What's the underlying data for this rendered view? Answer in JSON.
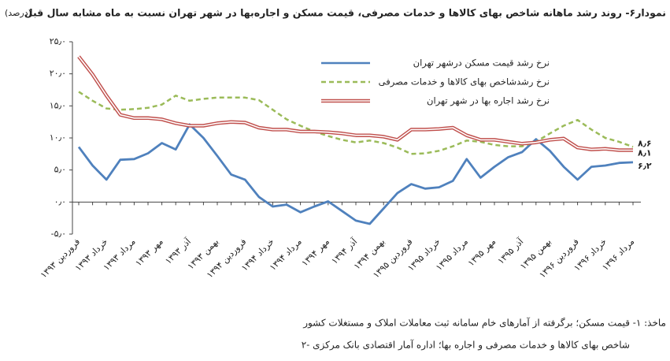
{
  "chart_data": {
    "type": "line",
    "title": "نمودار۶- روند رشد ماهانه شاخص بهای کالاها و خدمات مصرفی، قیمت مسکن و اجاره‌بها در شهر تهران نسبت به ماه مشابه سال قبل",
    "unit": "(درصد)",
    "categories": [
      "فروردین ۱۳۹۳",
      null,
      "خرداد ۱۳۹۳",
      null,
      "مرداد ۱۳۹۳",
      null,
      "مهر ۱۳۹۳",
      null,
      "آذر ۱۳۹۳",
      null,
      "بهمن ۱۳۹۳",
      null,
      "فروردین ۱۳۹۴",
      null,
      "خرداد ۱۳۹۴",
      null,
      "مرداد ۱۳۹۴",
      null,
      "مهر ۱۳۹۴",
      null,
      "آذر ۱۳۹۴",
      null,
      "بهمن ۱۳۹۴",
      null,
      "فروردین ۱۳۹۵",
      null,
      "خرداد ۱۳۹۵",
      null,
      "مرداد ۱۳۹۵",
      null,
      "مهر ۱۳۹۵",
      null,
      "آذر ۱۳۹۵",
      null,
      "بهمن ۱۳۹۵",
      null,
      "فروردین ۱۳۹۶",
      null,
      "خرداد ۱۳۹۶",
      null,
      "مرداد ۱۳۹۶"
    ],
    "series": [
      {
        "name": "نرخ رشد قیمت مسکن درشهر تهران",
        "color": "#4f81bd",
        "style": "solid",
        "values": [
          8.6,
          5.7,
          3.5,
          6.6,
          6.7,
          7.6,
          9.2,
          8.2,
          12.1,
          10.0,
          7.2,
          4.3,
          3.5,
          0.8,
          -0.7,
          -0.4,
          -1.6,
          -0.7,
          0.1,
          -1.4,
          -2.9,
          -3.4,
          -1.0,
          1.4,
          2.8,
          2.1,
          2.3,
          3.3,
          6.7,
          3.8,
          5.5,
          7.0,
          7.8,
          9.8,
          8.0,
          5.5,
          3.5,
          5.5,
          5.7,
          6.1,
          6.2
        ],
        "value_labels": [
          null,
          null,
          null,
          null,
          null,
          null,
          null,
          null,
          null,
          null,
          null,
          null,
          null,
          null,
          null,
          null,
          null,
          null,
          null,
          null,
          null,
          null,
          null,
          null,
          null,
          null,
          null,
          null,
          null,
          null,
          null,
          null,
          null,
          null,
          null,
          null,
          null,
          null,
          null,
          null,
          "۶٫۲"
        ]
      },
      {
        "name": "نرخ رشدشاخص بهای کالاها و خدمات مصرفی",
        "color": "#9bbb59",
        "style": "dashed",
        "values": [
          17.2,
          15.8,
          14.6,
          14.4,
          14.5,
          14.7,
          15.2,
          16.6,
          15.8,
          16.1,
          16.3,
          16.3,
          16.3,
          15.9,
          14.4,
          12.9,
          11.9,
          11.0,
          10.3,
          9.7,
          9.3,
          9.6,
          9.2,
          8.5,
          7.5,
          7.6,
          8.0,
          8.7,
          9.6,
          9.4,
          8.9,
          8.7,
          8.7,
          9.4,
          10.7,
          11.9,
          12.8,
          11.3,
          10.0,
          9.4,
          8.6
        ],
        "value_labels": [
          null,
          null,
          null,
          null,
          null,
          null,
          null,
          null,
          null,
          null,
          null,
          null,
          null,
          null,
          null,
          null,
          null,
          null,
          null,
          null,
          null,
          null,
          null,
          null,
          null,
          null,
          null,
          null,
          null,
          null,
          null,
          null,
          null,
          null,
          null,
          null,
          null,
          null,
          null,
          null,
          "۸٫۶"
        ]
      },
      {
        "name": "نرخ رشد اجاره بها در شهر تهران",
        "color": "#c0504d",
        "style": "double",
        "values": [
          22.7,
          19.9,
          16.6,
          13.6,
          13.1,
          13.1,
          12.9,
          12.3,
          11.9,
          11.9,
          12.3,
          12.5,
          12.4,
          11.6,
          11.3,
          11.3,
          11.0,
          11.0,
          10.9,
          10.7,
          10.4,
          10.4,
          10.2,
          9.7,
          11.3,
          11.3,
          11.4,
          11.6,
          10.4,
          9.7,
          9.7,
          9.4,
          9.1,
          9.3,
          9.7,
          9.9,
          8.5,
          8.2,
          8.3,
          8.1,
          8.1
        ],
        "value_labels": [
          null,
          null,
          null,
          null,
          null,
          null,
          null,
          null,
          null,
          null,
          null,
          null,
          null,
          null,
          null,
          null,
          null,
          null,
          null,
          null,
          null,
          null,
          null,
          null,
          null,
          null,
          null,
          null,
          null,
          null,
          null,
          null,
          null,
          null,
          null,
          null,
          null,
          null,
          null,
          null,
          "۸٫۱"
        ]
      }
    ],
    "ylim": [
      -5,
      25
    ],
    "yticks": [
      {
        "value": -5,
        "label": "-۵٫۰"
      },
      {
        "value": 0,
        "label": "۰٫۰"
      },
      {
        "value": 5,
        "label": "۵٫۰"
      },
      {
        "value": 10,
        "label": "۱۰٫۰"
      },
      {
        "value": 15,
        "label": "۱۵٫۰"
      },
      {
        "value": 20,
        "label": "۲۰٫۰"
      },
      {
        "value": 25,
        "label": "۲۵٫۰"
      }
    ],
    "grid": false,
    "legend": "top",
    "sources": [
      "ماخذ: ۱- قیمت مسکن؛ برگرفته از آمارهای خام سامانه ثبت معاملات املاک و مستغلات کشور",
      "۲- شاخص بهای کالاها و خدمات مصرفی و اجاره بها؛ اداره آمار اقتصادی بانک مرکزی"
    ]
  }
}
